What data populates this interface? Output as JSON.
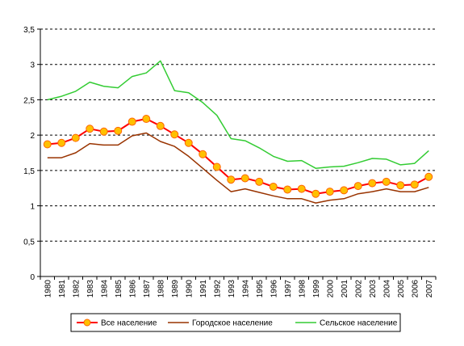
{
  "chart_data": {
    "type": "line",
    "title": "",
    "xlabel": "",
    "ylabel": "",
    "ylim": [
      0,
      3.5
    ],
    "yticks": [
      "0",
      "0,5",
      "1",
      "1,5",
      "2",
      "2,5",
      "3",
      "3,5"
    ],
    "categories": [
      "1980",
      "1981",
      "1982",
      "1983",
      "1984",
      "1985",
      "1986",
      "1987",
      "1988",
      "1989",
      "1990",
      "1991",
      "1992",
      "1993",
      "1994",
      "1995",
      "1996",
      "1997",
      "1998",
      "1999",
      "2000",
      "2001",
      "2002",
      "2003",
      "2004",
      "2005",
      "2006",
      "2007"
    ],
    "grid": "horizontal-dashed",
    "legend_position": "bottom",
    "series": [
      {
        "name": "Все население",
        "color": "#ff0000",
        "marker_color": "#ffc000",
        "values": [
          1.87,
          1.89,
          1.96,
          2.09,
          2.05,
          2.06,
          2.19,
          2.23,
          2.13,
          2.01,
          1.89,
          1.73,
          1.55,
          1.37,
          1.39,
          1.34,
          1.27,
          1.23,
          1.24,
          1.17,
          1.2,
          1.22,
          1.28,
          1.32,
          1.34,
          1.29,
          1.3,
          1.41
        ]
      },
      {
        "name": "Городское население",
        "color": "#993300",
        "values": [
          1.68,
          1.68,
          1.75,
          1.88,
          1.86,
          1.86,
          1.99,
          2.03,
          1.91,
          1.84,
          1.7,
          1.53,
          1.36,
          1.2,
          1.24,
          1.19,
          1.14,
          1.1,
          1.1,
          1.04,
          1.08,
          1.1,
          1.17,
          1.2,
          1.24,
          1.2,
          1.2,
          1.26
        ]
      },
      {
        "name": "Сельское население",
        "color": "#33cc33",
        "values": [
          2.5,
          2.55,
          2.62,
          2.75,
          2.69,
          2.67,
          2.83,
          2.88,
          3.05,
          2.63,
          2.6,
          2.46,
          2.28,
          1.95,
          1.92,
          1.82,
          1.7,
          1.63,
          1.64,
          1.53,
          1.55,
          1.56,
          1.61,
          1.67,
          1.66,
          1.58,
          1.6,
          1.78
        ]
      }
    ]
  }
}
